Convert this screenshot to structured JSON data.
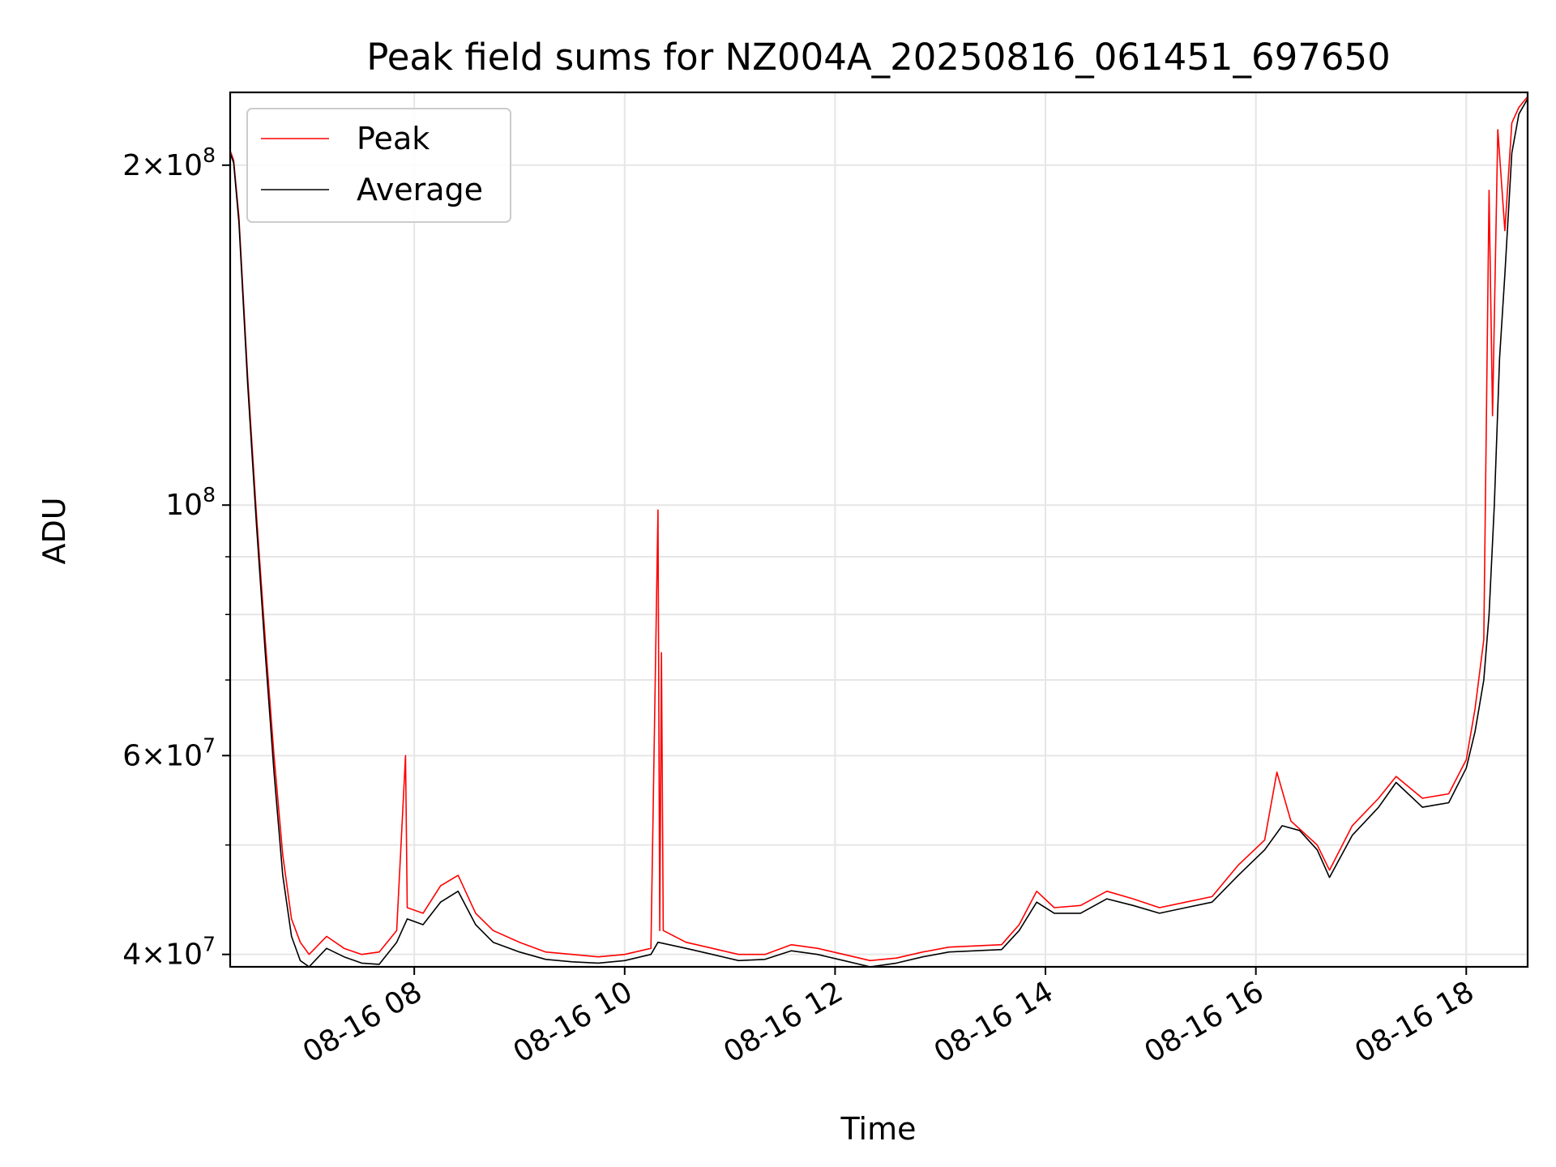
{
  "chart_data": {
    "type": "line",
    "title": "Peak field sums for NZ004A_20250816_061451_697650",
    "xlabel": "Time",
    "ylabel": "ADU",
    "x_scale": "time",
    "y_scale": "log",
    "xlim": [
      "2025-08-16 06:15",
      "2025-08-16 18:35"
    ],
    "ylim": [
      39000000,
      232000000
    ],
    "grid": true,
    "legend_position": "top-left",
    "x_ticks": [
      {
        "value": "2025-08-16 08:00",
        "label": "08-16 08"
      },
      {
        "value": "2025-08-16 10:00",
        "label": "08-16 10"
      },
      {
        "value": "2025-08-16 12:00",
        "label": "08-16 12"
      },
      {
        "value": "2025-08-16 14:00",
        "label": "08-16 14"
      },
      {
        "value": "2025-08-16 16:00",
        "label": "08-16 16"
      },
      {
        "value": "2025-08-16 18:00",
        "label": "08-16 18"
      }
    ],
    "y_ticks": [
      {
        "value": 40000000,
        "base": "4",
        "exp": "7"
      },
      {
        "value": 60000000,
        "base": "6",
        "exp": "7"
      },
      {
        "value": 100000000,
        "base": "",
        "exp": "8"
      },
      {
        "value": 200000000,
        "base": "2",
        "exp": "8"
      }
    ],
    "y_minor_ticks": [
      50000000,
      70000000,
      80000000,
      90000000
    ],
    "series": [
      {
        "name": "Peak",
        "color": "#ff0000",
        "points": [
          [
            "2025-08-16 06:15",
            206000000
          ],
          [
            "2025-08-16 06:17",
            202000000
          ],
          [
            "2025-08-16 06:20",
            180000000
          ],
          [
            "2025-08-16 06:25",
            130000000
          ],
          [
            "2025-08-16 06:30",
            98000000
          ],
          [
            "2025-08-16 06:35",
            76000000
          ],
          [
            "2025-08-16 06:40",
            60000000
          ],
          [
            "2025-08-16 06:45",
            49000000
          ],
          [
            "2025-08-16 06:50",
            43000000
          ],
          [
            "2025-08-16 06:55",
            41000000
          ],
          [
            "2025-08-16 07:00",
            40000000
          ],
          [
            "2025-08-16 07:10",
            41500000
          ],
          [
            "2025-08-16 07:20",
            40500000
          ],
          [
            "2025-08-16 07:30",
            40000000
          ],
          [
            "2025-08-16 07:40",
            40200000
          ],
          [
            "2025-08-16 07:50",
            42000000
          ],
          [
            "2025-08-16 07:55",
            60000000
          ],
          [
            "2025-08-16 07:56",
            44000000
          ],
          [
            "2025-08-16 08:05",
            43500000
          ],
          [
            "2025-08-16 08:15",
            46000000
          ],
          [
            "2025-08-16 08:25",
            47000000
          ],
          [
            "2025-08-16 08:35",
            43500000
          ],
          [
            "2025-08-16 08:45",
            42000000
          ],
          [
            "2025-08-16 09:00",
            41000000
          ],
          [
            "2025-08-16 09:15",
            40200000
          ],
          [
            "2025-08-16 09:30",
            40000000
          ],
          [
            "2025-08-16 09:45",
            39800000
          ],
          [
            "2025-08-16 10:00",
            40000000
          ],
          [
            "2025-08-16 10:15",
            40500000
          ],
          [
            "2025-08-16 10:19",
            99000000
          ],
          [
            "2025-08-16 10:20",
            42000000
          ],
          [
            "2025-08-16 10:21",
            74000000
          ],
          [
            "2025-08-16 10:22",
            42000000
          ],
          [
            "2025-08-16 10:35",
            41000000
          ],
          [
            "2025-08-16 10:50",
            40500000
          ],
          [
            "2025-08-16 11:05",
            40000000
          ],
          [
            "2025-08-16 11:20",
            40000000
          ],
          [
            "2025-08-16 11:35",
            40800000
          ],
          [
            "2025-08-16 11:50",
            40500000
          ],
          [
            "2025-08-16 12:05",
            40000000
          ],
          [
            "2025-08-16 12:20",
            39500000
          ],
          [
            "2025-08-16 12:35",
            39700000
          ],
          [
            "2025-08-16 12:50",
            40200000
          ],
          [
            "2025-08-16 13:05",
            40600000
          ],
          [
            "2025-08-16 13:20",
            40700000
          ],
          [
            "2025-08-16 13:35",
            40800000
          ],
          [
            "2025-08-16 13:45",
            42500000
          ],
          [
            "2025-08-16 13:55",
            45500000
          ],
          [
            "2025-08-16 14:05",
            44000000
          ],
          [
            "2025-08-16 14:20",
            44200000
          ],
          [
            "2025-08-16 14:35",
            45500000
          ],
          [
            "2025-08-16 14:50",
            44800000
          ],
          [
            "2025-08-16 15:05",
            44000000
          ],
          [
            "2025-08-16 15:20",
            44500000
          ],
          [
            "2025-08-16 15:35",
            45000000
          ],
          [
            "2025-08-16 15:50",
            48000000
          ],
          [
            "2025-08-16 16:05",
            50500000
          ],
          [
            "2025-08-16 16:12",
            58000000
          ],
          [
            "2025-08-16 16:20",
            52500000
          ],
          [
            "2025-08-16 16:35",
            50000000
          ],
          [
            "2025-08-16 16:42",
            47500000
          ],
          [
            "2025-08-16 16:55",
            52000000
          ],
          [
            "2025-08-16 17:10",
            55000000
          ],
          [
            "2025-08-16 17:20",
            57500000
          ],
          [
            "2025-08-16 17:35",
            55000000
          ],
          [
            "2025-08-16 17:50",
            55500000
          ],
          [
            "2025-08-16 18:00",
            59500000
          ],
          [
            "2025-08-16 18:05",
            66000000
          ],
          [
            "2025-08-16 18:10",
            76000000
          ],
          [
            "2025-08-16 18:13",
            190000000
          ],
          [
            "2025-08-16 18:15",
            120000000
          ],
          [
            "2025-08-16 18:18",
            215000000
          ],
          [
            "2025-08-16 18:22",
            175000000
          ],
          [
            "2025-08-16 18:26",
            218000000
          ],
          [
            "2025-08-16 18:30",
            225000000
          ],
          [
            "2025-08-16 18:35",
            230000000
          ]
        ]
      },
      {
        "name": "Average",
        "color": "#000000",
        "points": [
          [
            "2025-08-16 06:15",
            205000000
          ],
          [
            "2025-08-16 06:17",
            201000000
          ],
          [
            "2025-08-16 06:20",
            178000000
          ],
          [
            "2025-08-16 06:25",
            128000000
          ],
          [
            "2025-08-16 06:30",
            96000000
          ],
          [
            "2025-08-16 06:35",
            74000000
          ],
          [
            "2025-08-16 06:40",
            58000000
          ],
          [
            "2025-08-16 06:45",
            47000000
          ],
          [
            "2025-08-16 06:50",
            41500000
          ],
          [
            "2025-08-16 06:55",
            39500000
          ],
          [
            "2025-08-16 07:00",
            39000000
          ],
          [
            "2025-08-16 07:10",
            40500000
          ],
          [
            "2025-08-16 07:20",
            39800000
          ],
          [
            "2025-08-16 07:30",
            39300000
          ],
          [
            "2025-08-16 07:40",
            39200000
          ],
          [
            "2025-08-16 07:50",
            41000000
          ],
          [
            "2025-08-16 07:56",
            43000000
          ],
          [
            "2025-08-16 08:05",
            42500000
          ],
          [
            "2025-08-16 08:15",
            44500000
          ],
          [
            "2025-08-16 08:25",
            45500000
          ],
          [
            "2025-08-16 08:35",
            42500000
          ],
          [
            "2025-08-16 08:45",
            41000000
          ],
          [
            "2025-08-16 09:00",
            40200000
          ],
          [
            "2025-08-16 09:15",
            39600000
          ],
          [
            "2025-08-16 09:30",
            39400000
          ],
          [
            "2025-08-16 09:45",
            39300000
          ],
          [
            "2025-08-16 10:00",
            39500000
          ],
          [
            "2025-08-16 10:15",
            40000000
          ],
          [
            "2025-08-16 10:19",
            41000000
          ],
          [
            "2025-08-16 10:35",
            40500000
          ],
          [
            "2025-08-16 10:50",
            40000000
          ],
          [
            "2025-08-16 11:05",
            39500000
          ],
          [
            "2025-08-16 11:20",
            39600000
          ],
          [
            "2025-08-16 11:35",
            40300000
          ],
          [
            "2025-08-16 11:50",
            40000000
          ],
          [
            "2025-08-16 12:05",
            39500000
          ],
          [
            "2025-08-16 12:20",
            39000000
          ],
          [
            "2025-08-16 12:35",
            39300000
          ],
          [
            "2025-08-16 12:50",
            39800000
          ],
          [
            "2025-08-16 13:05",
            40200000
          ],
          [
            "2025-08-16 13:20",
            40300000
          ],
          [
            "2025-08-16 13:35",
            40400000
          ],
          [
            "2025-08-16 13:45",
            42000000
          ],
          [
            "2025-08-16 13:55",
            44500000
          ],
          [
            "2025-08-16 14:05",
            43500000
          ],
          [
            "2025-08-16 14:20",
            43500000
          ],
          [
            "2025-08-16 14:35",
            44800000
          ],
          [
            "2025-08-16 14:50",
            44200000
          ],
          [
            "2025-08-16 15:05",
            43500000
          ],
          [
            "2025-08-16 15:20",
            44000000
          ],
          [
            "2025-08-16 15:35",
            44500000
          ],
          [
            "2025-08-16 15:50",
            47000000
          ],
          [
            "2025-08-16 16:05",
            49500000
          ],
          [
            "2025-08-16 16:15",
            52000000
          ],
          [
            "2025-08-16 16:25",
            51500000
          ],
          [
            "2025-08-16 16:35",
            49500000
          ],
          [
            "2025-08-16 16:42",
            46800000
          ],
          [
            "2025-08-16 16:55",
            51000000
          ],
          [
            "2025-08-16 17:10",
            54000000
          ],
          [
            "2025-08-16 17:20",
            56800000
          ],
          [
            "2025-08-16 17:35",
            54000000
          ],
          [
            "2025-08-16 17:50",
            54500000
          ],
          [
            "2025-08-16 18:00",
            58500000
          ],
          [
            "2025-08-16 18:05",
            63000000
          ],
          [
            "2025-08-16 18:10",
            70000000
          ],
          [
            "2025-08-16 18:13",
            80000000
          ],
          [
            "2025-08-16 18:16",
            100000000
          ],
          [
            "2025-08-16 18:19",
            135000000
          ],
          [
            "2025-08-16 18:22",
            160000000
          ],
          [
            "2025-08-16 18:26",
            205000000
          ],
          [
            "2025-08-16 18:30",
            222000000
          ],
          [
            "2025-08-16 18:35",
            229000000
          ]
        ]
      }
    ]
  }
}
